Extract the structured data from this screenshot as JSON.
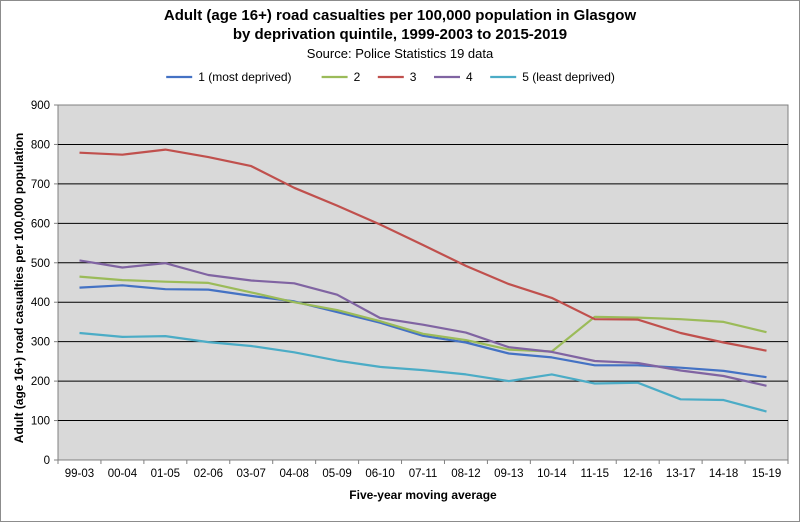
{
  "chart_data": {
    "type": "line",
    "title_lines": [
      "Adult (age 16+) road casualties per 100,000 population in Glasgow",
      "by deprivation quintile, 1999-2003 to 2015-2019"
    ],
    "subtitle": "Source: Police Statistics 19 data",
    "xlabel": "Five-year moving average",
    "ylabel": "Adult (age 16+) road casualties per 100,000 population",
    "ylim": [
      0,
      900
    ],
    "yticks": [
      "0",
      "100",
      "200",
      "300",
      "400",
      "500",
      "600",
      "700",
      "800",
      "900"
    ],
    "grid": true,
    "legend_position": "top",
    "categories": [
      "99-03",
      "00-04",
      "01-05",
      "02-06",
      "03-07",
      "04-08",
      "05-09",
      "06-10",
      "07-11",
      "08-12",
      "09-13",
      "10-14",
      "11-15",
      "12-16",
      "13-17",
      "14-18",
      "15-19"
    ],
    "series": [
      {
        "name": "1 (most deprived)",
        "color": "#4472c4",
        "values": [
          437,
          443,
          433,
          432,
          416,
          402,
          375,
          348,
          315,
          298,
          270,
          260,
          240,
          240,
          234,
          226,
          210
        ]
      },
      {
        "name": "2",
        "color": "#9bbb59",
        "values": [
          465,
          456,
          452,
          449,
          425,
          400,
          380,
          352,
          320,
          304,
          280,
          275,
          363,
          361,
          357,
          350,
          324
        ]
      },
      {
        "name": "3",
        "color": "#c0504d",
        "values": [
          779,
          774,
          787,
          768,
          745,
          690,
          645,
          597,
          545,
          492,
          446,
          411,
          357,
          356,
          322,
          298,
          277
        ]
      },
      {
        "name": "4",
        "color": "#8064a2",
        "values": [
          506,
          488,
          499,
          469,
          455,
          448,
          419,
          360,
          343,
          323,
          286,
          274,
          251,
          246,
          227,
          213,
          188
        ]
      },
      {
        "name": "5 (least deprived)",
        "color": "#4bacc6",
        "values": [
          322,
          312,
          314,
          299,
          289,
          273,
          252,
          236,
          228,
          217,
          200,
          217,
          194,
          196,
          154,
          152,
          123
        ]
      }
    ]
  }
}
